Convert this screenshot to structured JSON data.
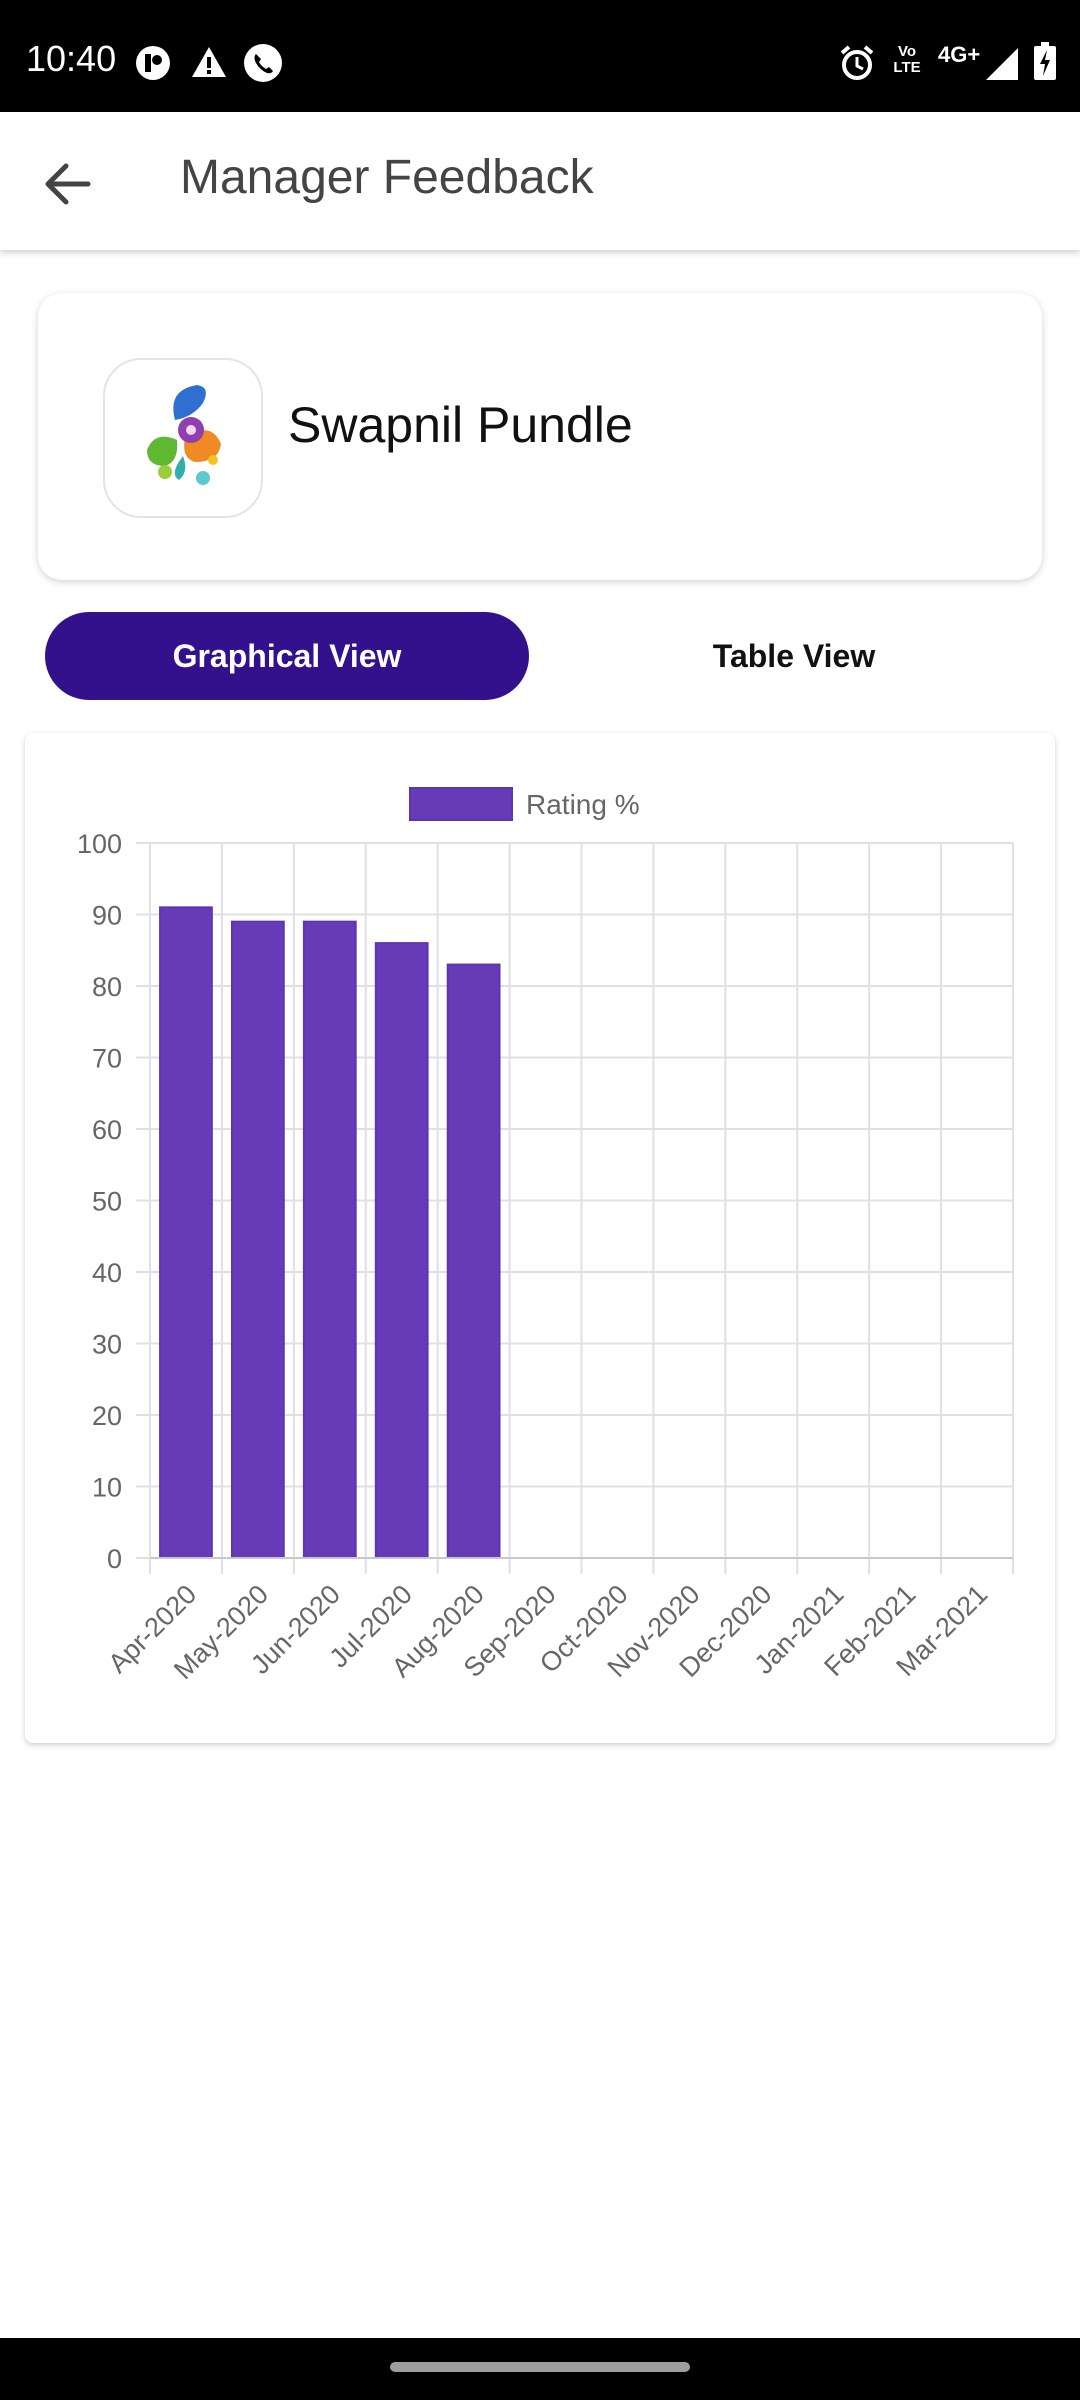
{
  "status_bar": {
    "time": "10:40",
    "left_icons": [
      "notification-icon",
      "warning-icon",
      "call-icon"
    ],
    "right_icons": [
      "alarm-icon",
      "volte-icon",
      "network-4g-icon",
      "signal-icon",
      "battery-icon"
    ],
    "volte_label": "Vo LTE",
    "network_label": "4G+"
  },
  "app_bar": {
    "title": "Manager Feedback",
    "back_icon": "arrow-left-icon"
  },
  "profile": {
    "name": "Swapnil Pundle",
    "logo_icon": "splash-logo-icon"
  },
  "tabs": [
    {
      "label": "Graphical View",
      "active": true
    },
    {
      "label": "Table View",
      "active": false
    }
  ],
  "colors": {
    "accent": "#33108c",
    "bar_fill": "#673ab7",
    "bar_border": "#5e35b1",
    "grid": "#e0e0e0",
    "tick_text": "#666666"
  },
  "chart_data": {
    "type": "bar",
    "legend": [
      "Rating %"
    ],
    "legend_position": "top",
    "categories": [
      "Apr-2020",
      "May-2020",
      "Jun-2020",
      "Jul-2020",
      "Aug-2020",
      "Sep-2020",
      "Oct-2020",
      "Nov-2020",
      "Dec-2020",
      "Jan-2021",
      "Feb-2021",
      "Mar-2021"
    ],
    "series": [
      {
        "name": "Rating %",
        "values": [
          91,
          89,
          89,
          86,
          83,
          null,
          null,
          null,
          null,
          null,
          null,
          null
        ]
      }
    ],
    "ylim": [
      0,
      100
    ],
    "yticks": [
      0,
      10,
      20,
      30,
      40,
      50,
      60,
      70,
      80,
      90,
      100
    ],
    "grid": true,
    "xlabel": "",
    "ylabel": ""
  }
}
